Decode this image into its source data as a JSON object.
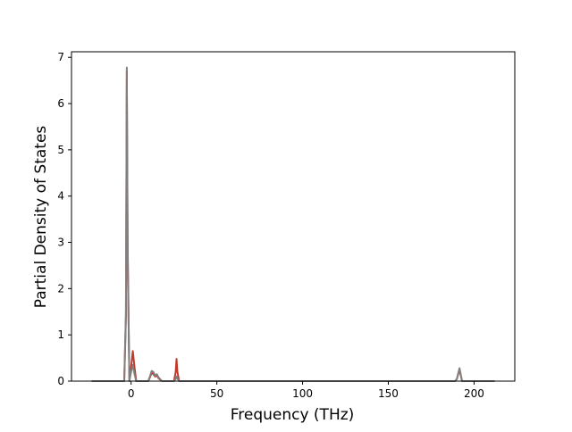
{
  "chart_data": {
    "type": "line",
    "x_label": "Frequency (THz)",
    "y_label": "Partial Density of States",
    "x": [
      -23,
      -4,
      -3,
      -2.5,
      -2,
      -1,
      0,
      1,
      2,
      3,
      10,
      11,
      12,
      13,
      14,
      15,
      16,
      18,
      25,
      26,
      26.5,
      27,
      28,
      189,
      190,
      191.5,
      193,
      212
    ],
    "series": [
      {
        "color": "#c0392b",
        "values": [
          0,
          0,
          1.4,
          6.7,
          2.8,
          0,
          0.3,
          0.65,
          0.3,
          0,
          0,
          0.08,
          0.18,
          0.15,
          0.1,
          0.12,
          0.06,
          0,
          0,
          0.2,
          0.48,
          0.2,
          0,
          0,
          0.05,
          0.25,
          0,
          0
        ]
      },
      {
        "color": "#808080",
        "values": [
          0,
          0,
          1.5,
          6.78,
          3,
          0,
          0.2,
          0.35,
          0.15,
          0,
          0,
          0.1,
          0.22,
          0.2,
          0.12,
          0.15,
          0.08,
          0,
          0,
          0.05,
          0.1,
          0.05,
          0,
          0,
          0.05,
          0.28,
          0,
          0
        ]
      }
    ],
    "xlim": [
      -34.75,
      223.75
    ],
    "ylim": [
      0,
      7.12
    ],
    "xticks": [
      0,
      50,
      100,
      150,
      200
    ],
    "yticks": [
      0,
      1,
      2,
      3,
      4,
      5,
      6,
      7
    ]
  }
}
